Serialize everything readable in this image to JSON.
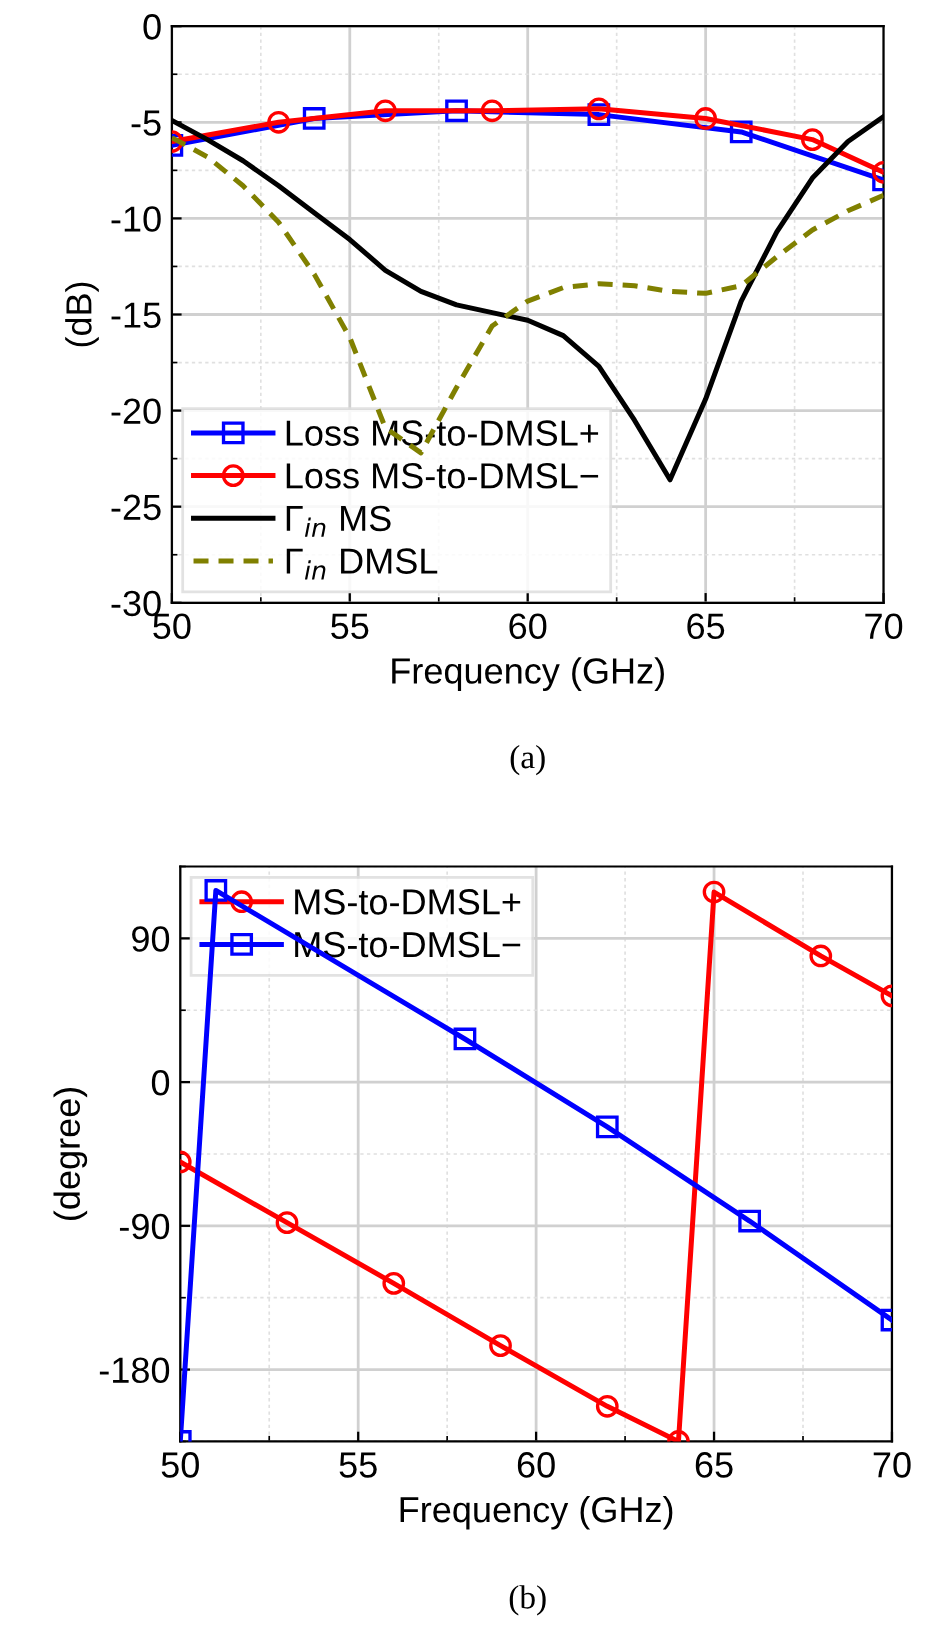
{
  "chart_data": [
    {
      "type": "line",
      "xlabel": "Frequency (GHz)",
      "ylabel": "(dB)",
      "annotations": [
        "(a)"
      ],
      "xlim": [
        50,
        70
      ],
      "ylim": [
        -30,
        0
      ],
      "xticks": [
        50,
        55,
        60,
        65,
        70
      ],
      "yticks": [
        -30,
        -25,
        -20,
        -15,
        -10,
        -5,
        0
      ],
      "grid": true,
      "legend": "bottom left",
      "series": [
        {
          "name": "Loss MS-to-DMSL+",
          "color": "#0000ff",
          "marker": "square",
          "x": [
            50,
            54,
            58,
            62,
            66,
            70
          ],
          "values": [
            -6.2,
            -4.8,
            -4.4,
            -4.6,
            -5.5,
            -8.0
          ]
        },
        {
          "name": "Loss MS-to-DMSL−",
          "color": "#ff0000",
          "marker": "circle",
          "x": [
            50,
            53,
            56,
            59,
            62,
            65,
            68,
            70
          ],
          "values": [
            -6.0,
            -5.0,
            -4.4,
            -4.4,
            -4.3,
            -4.8,
            -5.9,
            -7.6
          ]
        },
        {
          "name": "Γ$_{in}$ MS",
          "color": "#000000",
          "marker": "none",
          "line_style": "solid",
          "x": [
            50,
            51,
            52,
            53,
            54,
            55,
            56,
            57,
            58,
            59,
            60,
            61,
            62,
            63,
            64,
            65,
            66,
            67,
            68,
            69,
            70
          ],
          "values": [
            -4.9,
            -5.9,
            -7.0,
            -8.3,
            -9.7,
            -11.1,
            -12.7,
            -13.8,
            -14.5,
            -14.9,
            -15.3,
            -16.1,
            -17.7,
            -20.5,
            -23.6,
            -19.4,
            -14.3,
            -10.7,
            -7.9,
            -6.0,
            -4.7
          ]
        },
        {
          "name": "Γ$_{in}$ DMSL",
          "color": "#808000",
          "marker": "none",
          "line_style": "dashed",
          "x": [
            50,
            51,
            52,
            53,
            54,
            55,
            56,
            57,
            58,
            59,
            60,
            61,
            62,
            63,
            64,
            65,
            66,
            67,
            68,
            69,
            70
          ],
          "values": [
            -5.8,
            -6.8,
            -8.3,
            -10.2,
            -12.9,
            -16.2,
            -20.9,
            -22.2,
            -18.8,
            -15.6,
            -14.3,
            -13.6,
            -13.4,
            -13.5,
            -13.8,
            -13.9,
            -13.5,
            -12.0,
            -10.6,
            -9.6,
            -8.8
          ]
        }
      ]
    },
    {
      "type": "line",
      "xlabel": "Frequency (GHz)",
      "ylabel": "(degree)",
      "annotations": [
        "(b)"
      ],
      "xlim": [
        50,
        70
      ],
      "ylim": [
        -225,
        135
      ],
      "xticks": [
        50,
        55,
        60,
        65,
        70
      ],
      "yticks": [
        -180,
        -90,
        0,
        90
      ],
      "grid": true,
      "legend": "top left",
      "series": [
        {
          "name": "MS-to-DMSL+",
          "color": "#ff0000",
          "marker": "circle",
          "x": [
            50,
            53,
            56,
            59,
            62,
            64,
            65,
            68,
            70
          ],
          "values": [
            -50,
            -88,
            -126,
            -165,
            -203,
            -225,
            119,
            79,
            54
          ]
        },
        {
          "name": "MS-to-DMSL−",
          "color": "#0000ff",
          "marker": "square",
          "x": [
            50,
            51,
            58,
            62,
            66,
            70
          ],
          "values": [
            -225,
            120,
            27,
            -28,
            -87,
            -149
          ]
        }
      ]
    }
  ]
}
